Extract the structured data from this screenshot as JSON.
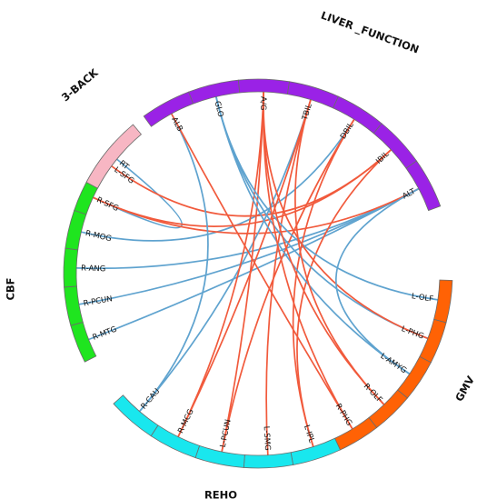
{
  "diagram": {
    "colors": {
      "CBF": "#1fe51f",
      "3-BACK": "#f7b6c3",
      "LIVER_FUNCTION": "#9a22e6",
      "GMV": "#ff6205",
      "REHO": "#19e7ee",
      "link_positive": "#f15a3c",
      "link_negative": "#5fa3cf"
    },
    "groups": [
      {
        "id": "CBF",
        "label": "CBF",
        "color": "CBF",
        "nodes": [
          "R-MTG",
          "R-PCUN",
          "R-ANG",
          "R-MOG",
          "R-SFG",
          "L-SFG"
        ]
      },
      {
        "id": "3-BACK",
        "label": "3-BACK",
        "color": "3-BACK",
        "nodes": [
          "RT"
        ]
      },
      {
        "id": "LIVER_FUNCTION",
        "label": "LIVER _FUNCTION",
        "color": "LIVER_FUNCTION",
        "nodes": [
          "ALB",
          "GLO",
          "A/G",
          "TBIL",
          "DBIL",
          "IBIL",
          "ALT"
        ]
      },
      {
        "id": "GMV",
        "label": "GMV",
        "color": "GMV",
        "nodes": [
          "L-OLF",
          "L-PHG",
          "L-AMYG",
          "R-OLF",
          "R-PHG"
        ]
      },
      {
        "id": "REHO",
        "label": "REHO",
        "color": "REHO",
        "nodes": [
          "L-IPL",
          "L-SMG",
          "L-PCUN",
          "R-MCG",
          "R-CAU"
        ]
      }
    ],
    "links": [
      {
        "source": "RT",
        "target": "R-SFG",
        "sign": "negative"
      },
      {
        "source": "R-MTG",
        "target": "ALT",
        "sign": "negative"
      },
      {
        "source": "R-PCUN",
        "target": "ALT",
        "sign": "negative"
      },
      {
        "source": "R-ANG",
        "target": "ALT",
        "sign": "negative"
      },
      {
        "source": "R-MOG",
        "target": "DBIL",
        "sign": "negative"
      },
      {
        "source": "R-SFG",
        "target": "ALT",
        "sign": "positive"
      },
      {
        "source": "R-SFG",
        "target": "IBIL",
        "sign": "positive"
      },
      {
        "source": "L-SFG",
        "target": "IBIL",
        "sign": "positive"
      },
      {
        "source": "R-CAU",
        "target": "TBIL",
        "sign": "negative"
      },
      {
        "source": "R-CAU",
        "target": "ALB",
        "sign": "negative"
      },
      {
        "source": "R-MCG",
        "target": "A/G",
        "sign": "positive"
      },
      {
        "source": "R-MCG",
        "target": "TBIL",
        "sign": "positive"
      },
      {
        "source": "L-PCUN",
        "target": "DBIL",
        "sign": "positive"
      },
      {
        "source": "L-PCUN",
        "target": "A/G",
        "sign": "positive"
      },
      {
        "source": "L-SMG",
        "target": "TBIL",
        "sign": "positive"
      },
      {
        "source": "L-IPL",
        "target": "IBIL",
        "sign": "positive"
      },
      {
        "source": "L-IPL",
        "target": "DBIL",
        "sign": "positive"
      },
      {
        "source": "ALB",
        "target": "R-PHG",
        "sign": "positive"
      },
      {
        "source": "GLO",
        "target": "L-OLF",
        "sign": "negative"
      },
      {
        "source": "GLO",
        "target": "L-PHG",
        "sign": "negative"
      },
      {
        "source": "GLO",
        "target": "L-AMYG",
        "sign": "negative"
      },
      {
        "source": "A/G",
        "target": "R-OLF",
        "sign": "positive"
      },
      {
        "source": "A/G",
        "target": "L-PHG",
        "sign": "positive"
      },
      {
        "source": "A/G",
        "target": "R-PHG",
        "sign": "positive"
      },
      {
        "source": "TBIL",
        "target": "R-OLF",
        "sign": "positive"
      },
      {
        "source": "ALT",
        "target": "L-AMYG",
        "sign": "negative"
      }
    ]
  }
}
